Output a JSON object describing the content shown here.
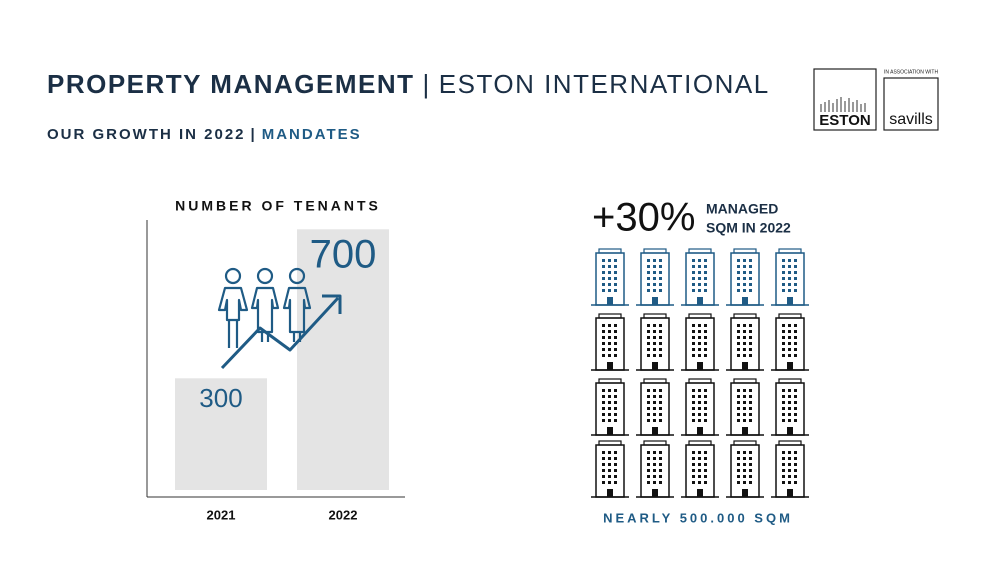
{
  "header": {
    "title": [
      "PROPERTY MANAGEMENT",
      "|",
      "ESTON INTERNATIONAL"
    ],
    "subtitle": [
      "OUR GROWTH IN 2022",
      "|",
      "MANDATES"
    ]
  },
  "logos": {
    "eston": "ESTON",
    "association": "IN ASSOCIATION WITH",
    "savills": "savills"
  },
  "chart_data": {
    "type": "bar",
    "title": "NUMBER OF TENANTS",
    "categories": [
      "2021",
      "2022"
    ],
    "values": [
      300,
      700
    ],
    "color": "#e4e4e4",
    "ylim": [
      0,
      725
    ]
  },
  "infographic": {
    "headline": "+30%",
    "caption": [
      "MANAGED",
      "SQM IN 2022"
    ],
    "footer": "NEARLY 500.000 SQM"
  }
}
